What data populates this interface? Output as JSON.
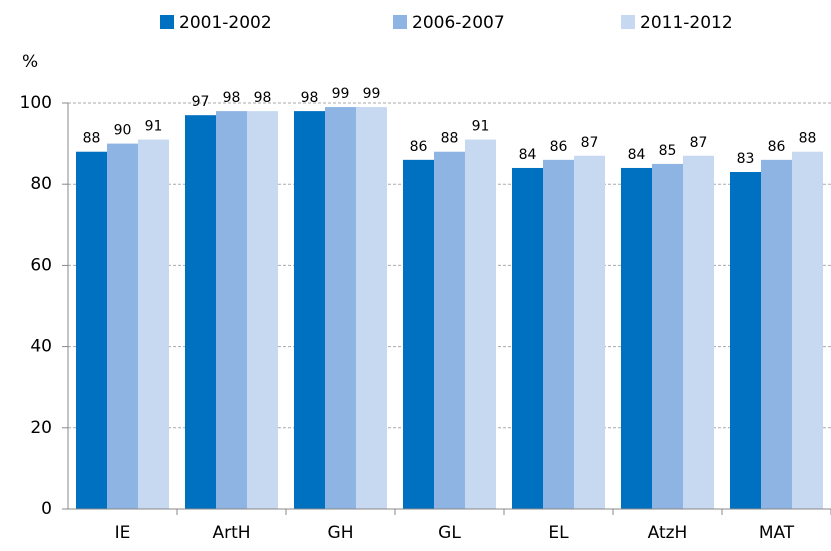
{
  "chart_data": {
    "type": "bar",
    "y_label": "%",
    "categories": [
      "IE",
      "ArtH",
      "GH",
      "GL",
      "EL",
      "AtzH",
      "MAT"
    ],
    "series": [
      {
        "name": "2001-2002",
        "color": "#0070c0",
        "values": [
          88,
          97,
          98,
          86,
          84,
          84,
          83
        ]
      },
      {
        "name": "2006-2007",
        "color": "#8eb4e3",
        "values": [
          90,
          98,
          99,
          88,
          86,
          85,
          86
        ]
      },
      {
        "name": "2011-2012",
        "color": "#c6d9f1",
        "values": [
          91,
          98,
          99,
          91,
          87,
          87,
          88
        ]
      }
    ],
    "ylim": [
      0,
      100
    ],
    "yticks": [
      0,
      20,
      40,
      60,
      80,
      100
    ],
    "grid": true,
    "legend": "top"
  }
}
